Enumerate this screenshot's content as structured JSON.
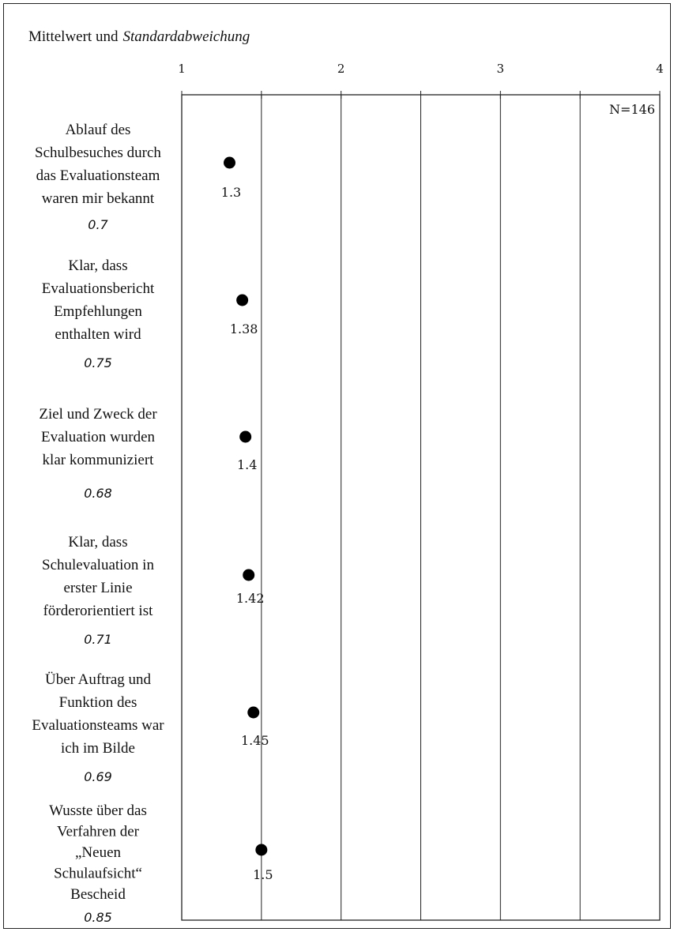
{
  "chart_data": {
    "type": "scatter",
    "title_plain": "Mittelwert und",
    "title_italic": "Standardabweichung",
    "xlim": [
      1,
      4
    ],
    "xticks": [
      "1",
      "2",
      "3",
      "4"
    ],
    "n_label": "N=146",
    "grid": true,
    "items": [
      {
        "label_lines": [
          "Ablauf des",
          "Schulbesuches durch",
          "das Evaluationsteam",
          "waren mir bekannt"
        ],
        "mean": 1.3,
        "mean_label": "1.3",
        "sd": "0.7"
      },
      {
        "label_lines": [
          "Klar, dass",
          "Evaluationsbericht",
          "Empfehlungen",
          "enthalten wird"
        ],
        "mean": 1.38,
        "mean_label": "1.38",
        "sd": "0.75"
      },
      {
        "label_lines": [
          "Ziel und Zweck der",
          "Evaluation wurden",
          "klar kommuniziert"
        ],
        "mean": 1.4,
        "mean_label": "1.4",
        "sd": "0.68"
      },
      {
        "label_lines": [
          "Klar, dass",
          "Schulevaluation in",
          "erster Linie",
          "förderorientiert ist"
        ],
        "mean": 1.42,
        "mean_label": "1.42",
        "sd": "0.71"
      },
      {
        "label_lines": [
          "Über Auftrag und",
          "Funktion des",
          "Evaluationsteams war",
          "ich im Bilde"
        ],
        "mean": 1.45,
        "mean_label": "1.45",
        "sd": "0.69"
      },
      {
        "label_lines": [
          "Wusste über das",
          "Verfahren der",
          "„Neuen",
          "Schulaufsicht“",
          "Bescheid"
        ],
        "mean": 1.5,
        "mean_label": "1.5",
        "sd": "0.85"
      }
    ]
  }
}
